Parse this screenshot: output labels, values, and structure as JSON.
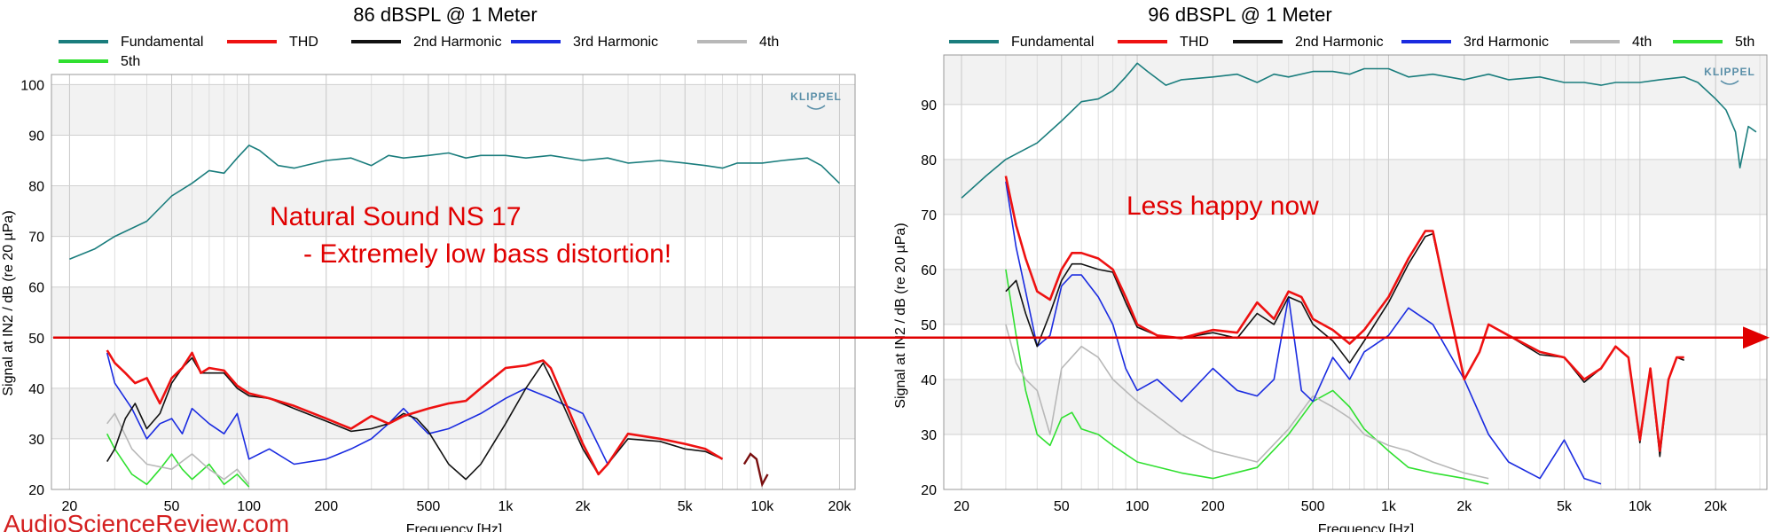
{
  "watermark": "AudioScienceReview.com",
  "logo": "KLIPPEL",
  "guide_line": {
    "label": "",
    "level_db": 49,
    "color": "#e00000"
  },
  "colors": {
    "Fundamental": "#1a7d7d",
    "THD": "#ee1111",
    "2nd Harmonic": "#111111",
    "3rd Harmonic": "#1a2be0",
    "4th": "#b8b8b8",
    "5th": "#30e030"
  },
  "chart_data": [
    {
      "type": "line",
      "title": "86 dBSPL @ 1 Meter",
      "xlabel": "Frequency [Hz]",
      "ylabel": "Signal at IN2 / dB (re 20 µPa)",
      "xscale": "log",
      "xlim": [
        17,
        23000
      ],
      "ylim": [
        20,
        102
      ],
      "xticks": [
        20,
        50,
        100,
        200,
        500,
        1000,
        2000,
        5000,
        10000,
        20000
      ],
      "xtick_labels": [
        "20",
        "50",
        "100",
        "200",
        "500",
        "1k",
        "2k",
        "5k",
        "10k",
        "20k"
      ],
      "yticks": [
        20,
        30,
        40,
        50,
        60,
        70,
        80,
        90,
        100
      ],
      "grid": true,
      "legend_position": "top",
      "annotation": [
        "Natural Sound NS 17",
        "- Extremely low bass distortion!"
      ],
      "series": [
        {
          "name": "Fundamental",
          "x": [
            20,
            25,
            30,
            40,
            50,
            60,
            70,
            80,
            90,
            100,
            110,
            130,
            150,
            200,
            250,
            300,
            350,
            400,
            500,
            600,
            700,
            800,
            1000,
            1200,
            1500,
            2000,
            2500,
            3000,
            4000,
            5000,
            6000,
            7000,
            8000,
            10000,
            12000,
            15000,
            17000,
            20000
          ],
          "y": [
            65.5,
            67.5,
            70,
            73,
            78,
            80.5,
            83,
            82.5,
            85.5,
            88,
            87,
            84,
            83.5,
            85,
            85.5,
            84,
            86,
            85.5,
            86,
            86.5,
            85.5,
            86,
            86,
            85.5,
            86,
            85,
            85.5,
            84.5,
            85,
            84.5,
            84,
            83.5,
            84.5,
            84.5,
            85,
            85.5,
            84,
            80.5
          ]
        },
        {
          "name": "THD",
          "x": [
            28,
            30,
            33,
            36,
            40,
            45,
            50,
            55,
            60,
            65,
            70,
            80,
            90,
            100,
            120,
            150,
            200,
            250,
            300,
            350,
            400,
            500,
            600,
            700,
            800,
            1000,
            1200,
            1400,
            1500,
            1700,
            2000,
            2300,
            2500,
            3000,
            4000,
            5000,
            6000,
            7000
          ],
          "y": [
            47.5,
            45,
            43,
            41,
            42,
            37,
            42,
            44,
            47,
            43,
            44,
            43.5,
            40.5,
            39,
            38,
            36.5,
            34,
            32,
            34.5,
            33,
            34.5,
            36,
            37,
            37.5,
            40,
            44,
            44.5,
            45.5,
            44,
            37.5,
            29,
            23,
            25,
            31,
            30,
            29,
            28,
            26
          ]
        },
        {
          "name": "2nd Harmonic",
          "x": [
            28,
            30,
            33,
            36,
            40,
            45,
            50,
            55,
            60,
            65,
            70,
            80,
            90,
            100,
            120,
            150,
            200,
            250,
            300,
            350,
            400,
            450,
            500,
            600,
            700,
            800,
            1000,
            1200,
            1400,
            1500,
            1700,
            2000,
            2300,
            2500,
            3000,
            4000,
            5000,
            6000,
            7000
          ],
          "y": [
            25.5,
            28,
            34,
            37,
            32,
            35,
            41,
            44,
            46,
            43,
            43,
            43,
            40,
            38.5,
            38,
            36,
            33.5,
            31.5,
            32,
            33,
            35,
            34,
            31.5,
            25,
            22,
            25,
            33,
            40,
            45,
            42,
            36,
            28,
            23,
            25,
            30,
            29.5,
            28,
            27.5,
            26
          ]
        },
        {
          "name": "3rd Harmonic",
          "x": [
            28,
            30,
            35,
            40,
            45,
            50,
            55,
            60,
            70,
            80,
            90,
            100,
            120,
            150,
            200,
            250,
            300,
            350,
            400,
            500,
            600,
            800,
            1000,
            1200,
            1500,
            2000,
            2500
          ],
          "y": [
            47,
            41,
            36,
            30,
            33,
            34,
            31,
            36,
            33,
            31,
            35,
            26,
            28,
            25,
            26,
            28,
            30,
            33,
            36,
            31,
            32,
            35,
            38,
            40,
            38,
            35,
            25
          ]
        },
        {
          "name": "4th",
          "x": [
            28,
            30,
            35,
            40,
            50,
            60,
            70,
            80,
            90,
            100
          ],
          "y": [
            33,
            35,
            28,
            25,
            24,
            27,
            24,
            22,
            24,
            21
          ]
        },
        {
          "name": "5th",
          "x": [
            28,
            30,
            35,
            40,
            45,
            50,
            55,
            60,
            70,
            80,
            90,
            100
          ],
          "y": [
            31,
            28,
            23,
            21,
            24,
            27,
            24,
            22,
            25,
            21,
            23,
            20.5
          ]
        }
      ],
      "segments_extra": {
        "name": "THD",
        "x": [
          8500,
          9000,
          9500,
          10000,
          10500
        ],
        "y": [
          25,
          27,
          26,
          21,
          23
        ]
      }
    },
    {
      "type": "line",
      "title": "96 dBSPL @ 1 Meter",
      "xlabel": "Frequency [Hz]",
      "ylabel": "Signal at IN2 / dB (re 20 µPa)",
      "xscale": "log",
      "xlim": [
        17,
        32000
      ],
      "ylim": [
        20,
        99
      ],
      "xticks": [
        20,
        50,
        100,
        200,
        500,
        1000,
        2000,
        5000,
        10000,
        20000
      ],
      "xtick_labels": [
        "20",
        "50",
        "100",
        "200",
        "500",
        "1k",
        "2k",
        "5k",
        "10k",
        "20k"
      ],
      "yticks": [
        20,
        30,
        40,
        50,
        60,
        70,
        80,
        90
      ],
      "grid": true,
      "legend_position": "top",
      "annotation": [
        "Less happy now"
      ],
      "series": [
        {
          "name": "Fundamental",
          "x": [
            20,
            25,
            30,
            40,
            50,
            60,
            70,
            80,
            90,
            100,
            110,
            130,
            150,
            200,
            250,
            300,
            350,
            400,
            500,
            600,
            700,
            800,
            1000,
            1200,
            1500,
            2000,
            2500,
            3000,
            4000,
            5000,
            6000,
            7000,
            8000,
            10000,
            12000,
            15000,
            17000,
            20000,
            22000,
            24000,
            25000,
            27000,
            29000
          ],
          "y": [
            73,
            77,
            80,
            83,
            87,
            90.5,
            91,
            92.5,
            95,
            97.5,
            96,
            93.5,
            94.5,
            95,
            95.5,
            94,
            95.5,
            95,
            96,
            96,
            95.5,
            96.5,
            96.5,
            95,
            95.5,
            94.5,
            95.5,
            94.5,
            95,
            94,
            94,
            93.5,
            94,
            94,
            94.5,
            95,
            94,
            91,
            89,
            85,
            78.5,
            86,
            85
          ]
        },
        {
          "name": "THD",
          "x": [
            30,
            33,
            36,
            40,
            45,
            50,
            55,
            60,
            70,
            80,
            90,
            100,
            120,
            150,
            200,
            250,
            300,
            350,
            400,
            450,
            500,
            600,
            700,
            800,
            1000,
            1200,
            1400,
            1500,
            1700,
            2000,
            2300,
            2500,
            3000,
            4000,
            5000,
            6000,
            7000,
            8000,
            9000,
            10000,
            11000,
            12000,
            13000,
            14000,
            15000
          ],
          "y": [
            77,
            68,
            62,
            56,
            54.5,
            60,
            63,
            63,
            62,
            60,
            55,
            50,
            48,
            47.5,
            49,
            48.5,
            54,
            51,
            56,
            55,
            51,
            49,
            46.5,
            49,
            55,
            62,
            67,
            67,
            55,
            40,
            45,
            50,
            48,
            45,
            44,
            40,
            42,
            46,
            44,
            29,
            42,
            27,
            40,
            44,
            44
          ]
        },
        {
          "name": "2nd Harmonic",
          "x": [
            30,
            33,
            36,
            40,
            45,
            50,
            55,
            60,
            70,
            80,
            90,
            100,
            120,
            150,
            200,
            250,
            300,
            350,
            400,
            450,
            500,
            600,
            700,
            800,
            1000,
            1200,
            1400,
            1500,
            1700,
            2000,
            2300,
            2500,
            3000,
            4000,
            5000,
            6000,
            7000,
            8000,
            9000,
            10000,
            11000,
            12000,
            13000,
            14000,
            15000
          ],
          "y": [
            56,
            58,
            52,
            46,
            52,
            58,
            61,
            61,
            60,
            59.5,
            54,
            49.5,
            48,
            47.5,
            48.5,
            47.5,
            52,
            50,
            55,
            54,
            50,
            47,
            43,
            47,
            54,
            61,
            66,
            66.5,
            55,
            40,
            45,
            50,
            48,
            44.5,
            44,
            39.5,
            42,
            46,
            44,
            28.5,
            42,
            26,
            40,
            44,
            43.5
          ]
        },
        {
          "name": "3rd Harmonic",
          "x": [
            30,
            33,
            36,
            40,
            45,
            50,
            55,
            60,
            70,
            80,
            90,
            100,
            120,
            150,
            200,
            250,
            300,
            350,
            400,
            450,
            500,
            600,
            700,
            800,
            1000,
            1200,
            1500,
            2000,
            2500,
            3000,
            4000,
            5000,
            6000,
            7000
          ],
          "y": [
            76,
            64,
            56,
            46,
            48,
            57,
            59,
            59,
            55,
            50,
            42,
            38,
            40,
            36,
            42,
            38,
            37,
            40,
            55,
            38,
            36,
            44,
            40,
            45,
            48,
            53,
            50,
            40,
            30,
            25,
            22,
            29,
            22,
            21
          ]
        },
        {
          "name": "4th",
          "x": [
            30,
            33,
            36,
            40,
            45,
            50,
            60,
            70,
            80,
            100,
            150,
            200,
            300,
            400,
            500,
            600,
            700,
            800,
            1000,
            1200,
            1500,
            2000,
            2500
          ],
          "y": [
            50,
            43,
            40,
            38,
            30,
            42,
            46,
            44,
            40,
            36,
            30,
            27,
            25,
            31,
            37,
            35,
            33,
            30,
            28,
            27,
            25,
            23,
            22
          ]
        },
        {
          "name": "5th",
          "x": [
            30,
            33,
            36,
            40,
            45,
            50,
            55,
            60,
            70,
            80,
            100,
            150,
            200,
            300,
            400,
            500,
            600,
            700,
            800,
            1000,
            1200,
            1500,
            2000,
            2500
          ],
          "y": [
            60,
            48,
            38,
            30,
            28,
            33,
            34,
            31,
            30,
            28,
            25,
            23,
            22,
            24,
            30,
            36,
            38,
            35,
            31,
            27,
            24,
            23,
            22,
            21
          ]
        }
      ]
    }
  ]
}
